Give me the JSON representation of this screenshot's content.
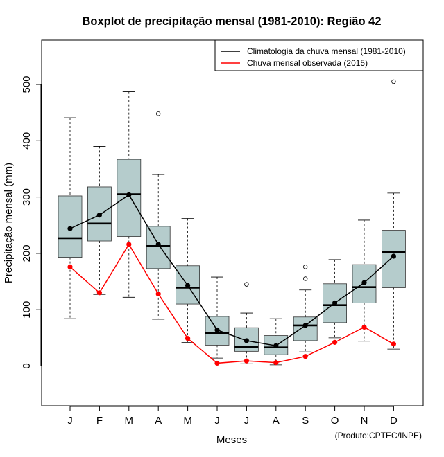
{
  "chart_data": {
    "type": "boxplot",
    "title": "Boxplot de precipitação mensal (1981-2010): Região 42",
    "xlabel": "Meses",
    "ylabel": "Precipitação mensal (mm)",
    "ylim": [
      -70,
      580
    ],
    "yticks": [
      0,
      100,
      200,
      300,
      400,
      500
    ],
    "categories": [
      "J",
      "F",
      "M",
      "A",
      "M",
      "J",
      "J",
      "A",
      "S",
      "O",
      "N",
      "D"
    ],
    "boxes": [
      {
        "whisker_low": 84,
        "q1": 193,
        "median": 227,
        "q3": 302,
        "whisker_high": 441,
        "outliers": []
      },
      {
        "whisker_low": 127,
        "q1": 222,
        "median": 253,
        "q3": 318,
        "whisker_high": 390,
        "outliers": []
      },
      {
        "whisker_low": 122,
        "q1": 230,
        "median": 305,
        "q3": 367,
        "whisker_high": 487,
        "outliers": []
      },
      {
        "whisker_low": 83,
        "q1": 173,
        "median": 213,
        "q3": 248,
        "whisker_high": 340,
        "outliers": [
          448
        ]
      },
      {
        "whisker_low": 42,
        "q1": 110,
        "median": 139,
        "q3": 178,
        "whisker_high": 262,
        "outliers": []
      },
      {
        "whisker_low": 14,
        "q1": 37,
        "median": 58,
        "q3": 88,
        "whisker_high": 158,
        "outliers": []
      },
      {
        "whisker_low": 4,
        "q1": 26,
        "median": 34,
        "q3": 68,
        "whisker_high": 94,
        "outliers": [
          145
        ]
      },
      {
        "whisker_low": 2,
        "q1": 20,
        "median": 33,
        "q3": 54,
        "whisker_high": 84,
        "outliers": []
      },
      {
        "whisker_low": 25,
        "q1": 45,
        "median": 72,
        "q3": 87,
        "whisker_high": 135,
        "outliers": [
          155,
          176
        ]
      },
      {
        "whisker_low": 50,
        "q1": 77,
        "median": 108,
        "q3": 146,
        "whisker_high": 189,
        "outliers": []
      },
      {
        "whisker_low": 44,
        "q1": 112,
        "median": 140,
        "q3": 180,
        "whisker_high": 259,
        "outliers": []
      },
      {
        "whisker_low": 30,
        "q1": 139,
        "median": 202,
        "q3": 241,
        "whisker_high": 307,
        "outliers": [
          505
        ]
      }
    ],
    "series": [
      {
        "name": "Climatologia da chuva mensal (1981-2010)",
        "color": "#000000",
        "values": [
          244,
          268,
          304,
          216,
          143,
          64,
          45,
          36,
          72,
          112,
          148,
          195
        ]
      },
      {
        "name": "Chuva mensal observada (2015)",
        "color": "#ff0000",
        "values": [
          176,
          130,
          216,
          128,
          49,
          5,
          9,
          6,
          17,
          42,
          69,
          39
        ]
      }
    ],
    "legend_position": "top-right",
    "box_fill": "#b5cccc"
  },
  "credit": "(Produto:CPTEC/INPE)"
}
